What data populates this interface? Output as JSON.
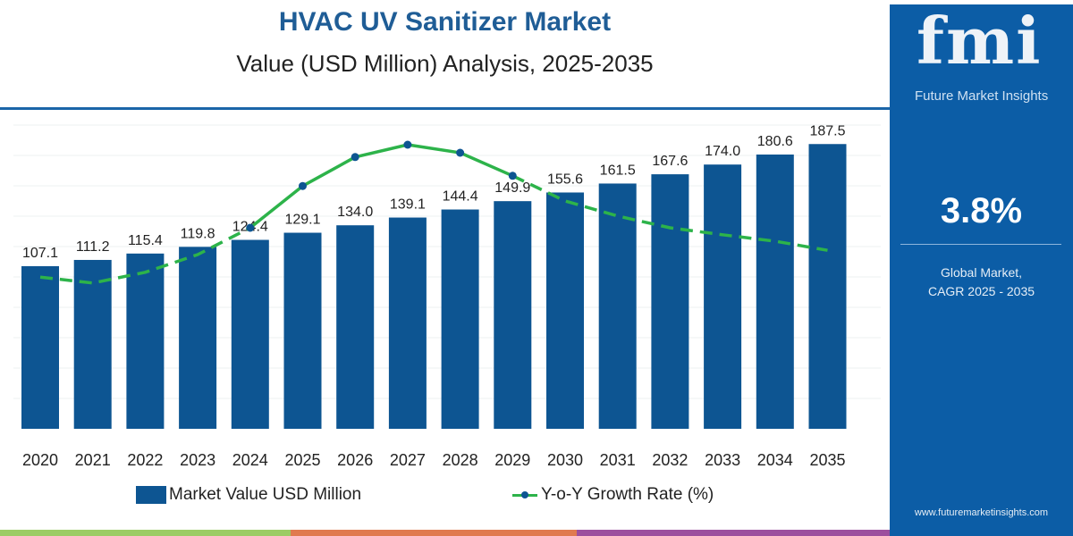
{
  "header": {
    "title": "HVAC UV Sanitizer Market",
    "subtitle": "Value (USD Million) Analysis, 2025-2035"
  },
  "colors": {
    "bar": "#0d5592",
    "line": "#2db34a",
    "marker": "#0d5592",
    "panel": "#0c5da6",
    "strip": [
      "#9ccc65",
      "#e07a4f",
      "#9c4f9e"
    ]
  },
  "chart_data": {
    "type": "bar+line",
    "categories": [
      "2020",
      "2021",
      "2022",
      "2023",
      "2024",
      "2025",
      "2026",
      "2027",
      "2028",
      "2029",
      "2030",
      "2031",
      "2032",
      "2033",
      "2034",
      "2035"
    ],
    "series": [
      {
        "name": "Market Value USD Million",
        "type": "bar",
        "values": [
          107.1,
          111.2,
          115.4,
          119.8,
          124.4,
          129.1,
          134.0,
          139.1,
          144.4,
          149.9,
          155.6,
          161.5,
          167.6,
          174.0,
          180.6,
          187.5
        ]
      },
      {
        "name": "Y-o-Y Growth Rate (%)",
        "type": "line",
        "values": [
          3.33,
          3.22,
          3.42,
          3.75,
          4.25,
          5.03,
          5.57,
          5.8,
          5.65,
          5.22,
          4.75,
          4.47,
          4.25,
          4.12,
          4.0,
          3.83
        ],
        "solid_range": [
          "2024",
          "2029"
        ],
        "dashed_elsewhere": true,
        "markers": [
          "2024",
          "2025",
          "2026",
          "2027",
          "2028",
          "2029"
        ]
      }
    ],
    "data_labels": [
      "107.1",
      "111.2",
      "115.4",
      "119.8",
      "124.4",
      "129.1",
      "134.0",
      "139.1",
      "144.4",
      "149.9",
      "155.6",
      "161.5",
      "167.6",
      "174.0",
      "180.6",
      "187.5"
    ],
    "grid": true,
    "legend_position": "bottom"
  },
  "legend": {
    "bar_label": "Market Value USD Million",
    "line_label": "Y-o-Y Growth Rate (%)"
  },
  "side_panel": {
    "logo": "fmi",
    "logo_text": "Future Market Insights",
    "cagr_value": "3.8%",
    "cagr_label_1": "Global Market,",
    "cagr_label_2": "CAGR 2025 - 2035",
    "url": "www.futuremarketinsights.com"
  }
}
